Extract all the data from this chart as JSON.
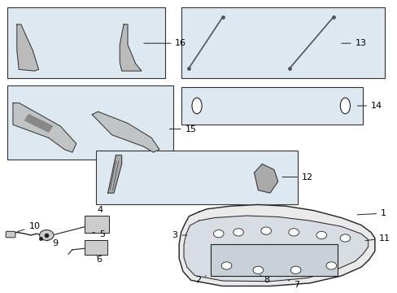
{
  "bg_color": "#ffffff",
  "box_fill": "#dde8f0",
  "box_edge": "#333333",
  "line_color": "#222222",
  "part_color": "#555555",
  "label_fontsize": 8
}
